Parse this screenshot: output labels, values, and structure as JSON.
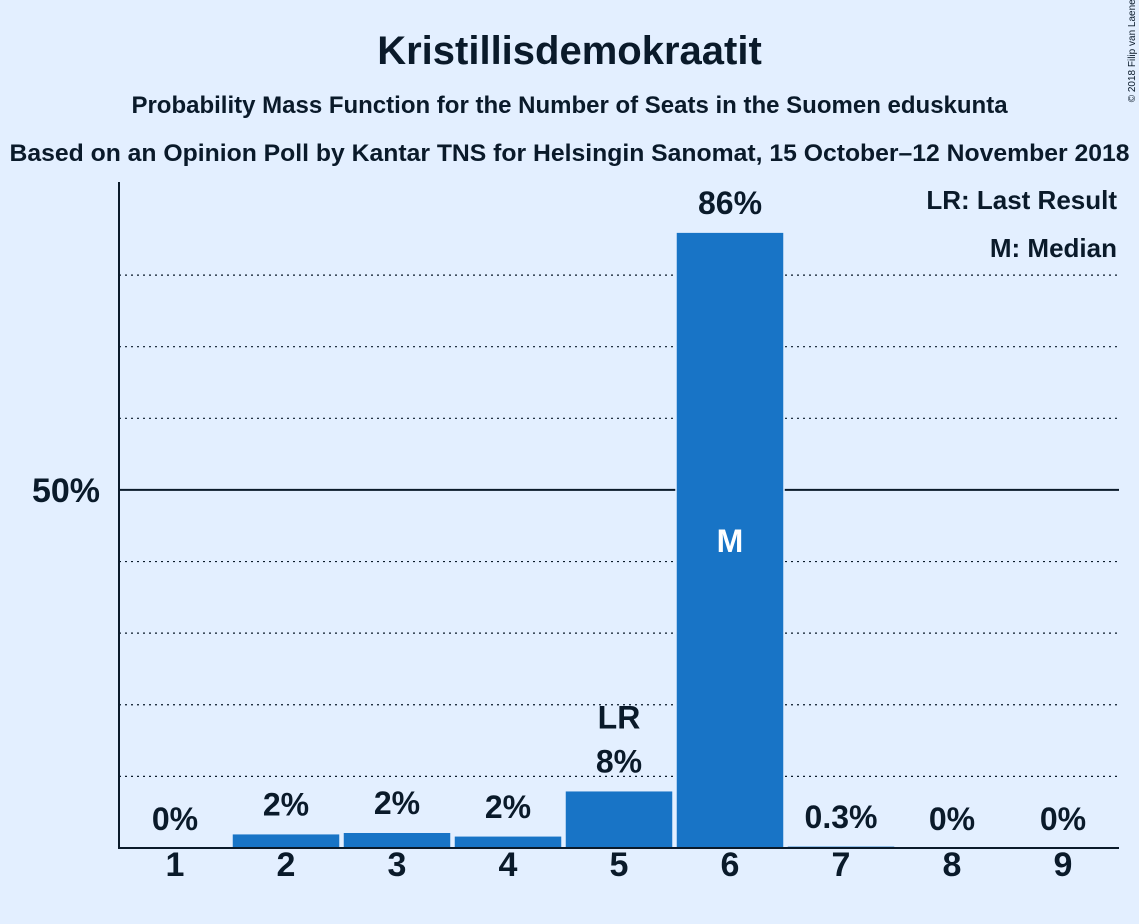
{
  "title": "Kristillisdemokraatit",
  "subtitle": "Probability Mass Function for the Number of Seats in the Suomen eduskunta",
  "subtitle2": "Based on an Opinion Poll by Kantar TNS for Helsingin Sanomat, 15 October–12 November 2018",
  "copyright": "© 2018 Filip van Laenen",
  "legend": {
    "last_result": "LR: Last Result",
    "median": "M: Median"
  },
  "colors": {
    "background": "#e3efff",
    "bar": "#1874c6",
    "text": "#0a1a2a"
  },
  "chart_data": {
    "type": "bar",
    "categories": [
      "1",
      "2",
      "3",
      "4",
      "5",
      "6",
      "7",
      "8",
      "9"
    ],
    "values": [
      0,
      2,
      2.2,
      1.7,
      8,
      86,
      0.3,
      0,
      0
    ],
    "data_labels": [
      "0%",
      "2%",
      "2%",
      "2%",
      "8%",
      "86%",
      "0.3%",
      "0%",
      "0%"
    ],
    "ylim": [
      0,
      93
    ],
    "yticks": [
      {
        "value": 50,
        "label": "50%"
      }
    ],
    "minor_gridlines": [
      10,
      20,
      30,
      40,
      60,
      70,
      80
    ],
    "last_result_category": "5",
    "last_result_label": "LR",
    "median_category": "6",
    "median_label": "M",
    "legend_position": "top-right"
  }
}
